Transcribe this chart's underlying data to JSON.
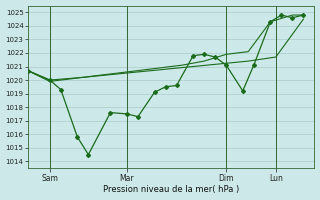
{
  "xlabel": "Pression niveau de la mer( hPa )",
  "ylim": [
    1013.5,
    1025.5
  ],
  "yticks": [
    1014,
    1015,
    1016,
    1017,
    1018,
    1019,
    1020,
    1021,
    1022,
    1023,
    1024,
    1025
  ],
  "bg_color": "#cce8e8",
  "grid_color": "#aacccc",
  "line_color": "#1a6b1a",
  "vline_color": "#336633",
  "xtick_labels": [
    "Sam",
    "Mar",
    "Dim",
    "Lun"
  ],
  "xtick_positions": [
    8,
    36,
    72,
    90
  ],
  "xlim": [
    0,
    104
  ],
  "series1_x": [
    0,
    8,
    12,
    18,
    22,
    30,
    36,
    40,
    46,
    50,
    54,
    60,
    64,
    68,
    72,
    78,
    82,
    88,
    92,
    96,
    100
  ],
  "series1_y": [
    1020.7,
    1020.0,
    1019.3,
    1015.8,
    1014.5,
    1017.6,
    1017.5,
    1017.3,
    1019.1,
    1019.5,
    1019.6,
    1021.8,
    1021.9,
    1021.7,
    1021.1,
    1019.2,
    1021.1,
    1024.3,
    1024.8,
    1024.6,
    1024.8
  ],
  "series2_x": [
    0,
    8,
    20,
    30,
    40,
    50,
    60,
    70,
    80,
    90,
    100
  ],
  "series2_y": [
    1020.7,
    1020.0,
    1020.2,
    1020.4,
    1020.6,
    1020.8,
    1021.0,
    1021.2,
    1021.4,
    1021.7,
    1024.5
  ],
  "series3_x": [
    0,
    8,
    16,
    24,
    32,
    40,
    48,
    56,
    64,
    72,
    80,
    88,
    96,
    100
  ],
  "series3_y": [
    1020.7,
    1019.9,
    1020.1,
    1020.3,
    1020.5,
    1020.7,
    1020.9,
    1021.1,
    1021.4,
    1021.9,
    1022.1,
    1024.3,
    1024.8,
    1024.8
  ]
}
